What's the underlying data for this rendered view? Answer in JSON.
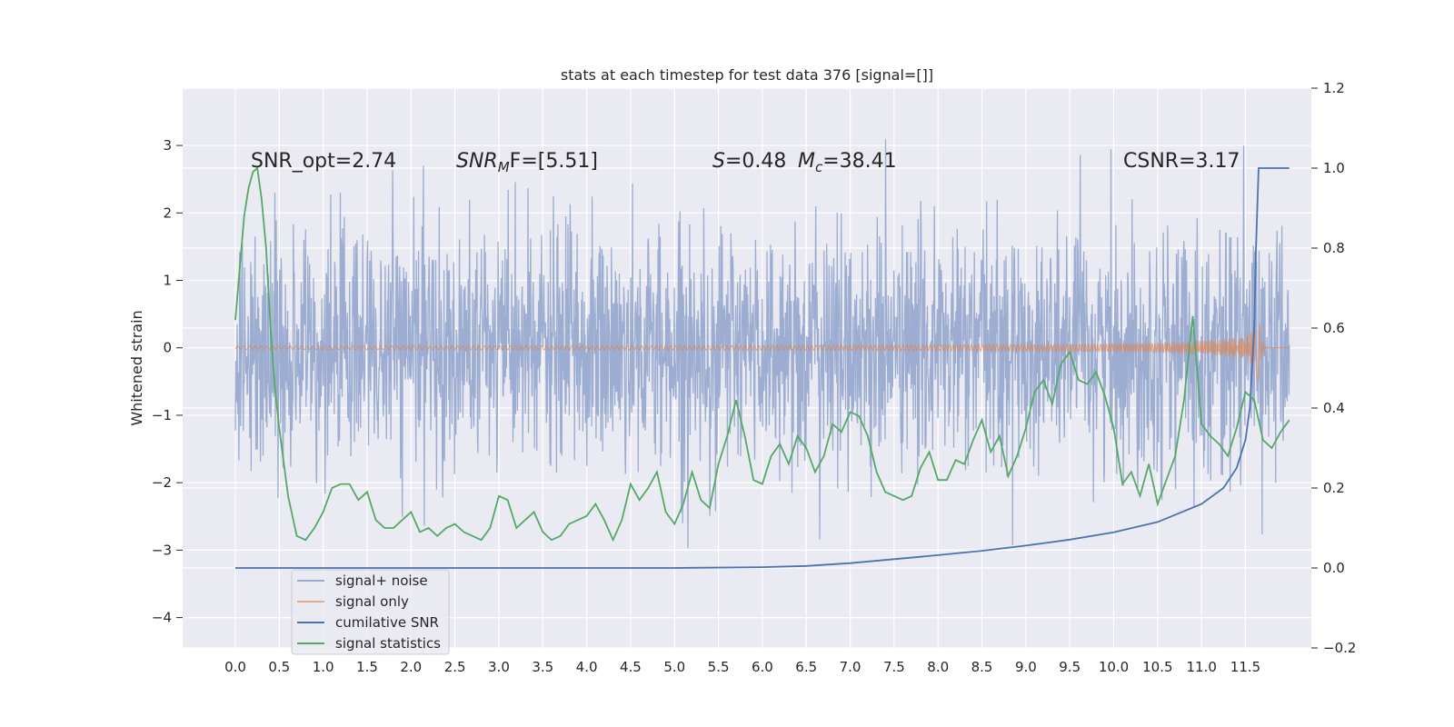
{
  "chart_data": {
    "type": "line",
    "title": "stats at each timestep for test data 376 [signal=[]]",
    "ylabel": "Whitened strain",
    "xlabel": "",
    "xlim": [
      -0.6,
      12.25
    ],
    "ylim": [
      -4.45,
      3.85
    ],
    "y2lim": [
      -0.2,
      1.2
    ],
    "xticks": [
      "0.0",
      "0.5",
      "1.0",
      "1.5",
      "2.0",
      "2.5",
      "3.0",
      "3.5",
      "4.0",
      "4.5",
      "5.0",
      "5.5",
      "6.0",
      "6.5",
      "7.0",
      "7.5",
      "8.0",
      "8.5",
      "9.0",
      "9.5",
      "10.0",
      "10.5",
      "11.0",
      "11.5"
    ],
    "yticks": [
      "3",
      "2",
      "1",
      "0",
      "−1",
      "−2",
      "−3",
      "−4"
    ],
    "y2ticks": [
      "1.2",
      "1.0",
      "0.8",
      "0.6",
      "0.4",
      "0.2",
      "0.0",
      "−0.2"
    ],
    "grid": true,
    "legend": {
      "position": "lower-left",
      "entries": [
        {
          "label": "signal+ noise",
          "color": "#98aacf"
        },
        {
          "label": "signal only",
          "color": "#dd8452"
        },
        {
          "label": "cumilative SNR",
          "color": "#4c72b0"
        },
        {
          "label": "signal statistics",
          "color": "#55a868"
        }
      ]
    },
    "annotations": {
      "snr_opt": "SNR_opt=2.74",
      "snr_mf_main": "SNR",
      "snr_mf_sub": "M",
      "snr_mf_rest": "F=[5.51]",
      "s_main": "S",
      "s_rest": "=0.48",
      "mc_main": "M",
      "mc_sub": "c",
      "mc_rest": "=38.41",
      "csnr": "CSNR=3.17"
    },
    "series": [
      {
        "name": "signal+ noise",
        "color": "#98aacf",
        "style": "dense gaussian noise trace, std ~0.9, t from 0 to 12.0",
        "t_start": 0.0,
        "t_end": 12.0,
        "std": 0.88
      },
      {
        "name": "signal only",
        "color": "#dd8452",
        "style": "chirp, amplitude grows near merger",
        "t_start": 0.0,
        "t_end": 12.0,
        "merger_time": 11.65,
        "peak_amplitude": 0.6
      },
      {
        "name": "cumilative SNR",
        "color": "#4c72b0",
        "axis": "right",
        "x": [
          0.0,
          5.0,
          6.0,
          6.5,
          7.0,
          7.5,
          8.0,
          8.5,
          9.0,
          9.5,
          10.0,
          10.5,
          11.0,
          11.25,
          11.4,
          11.5,
          11.55,
          11.6,
          11.62,
          11.65,
          11.8,
          12.0
        ],
        "y": [
          0.0,
          0.0,
          0.002,
          0.005,
          0.012,
          0.022,
          0.032,
          0.043,
          0.056,
          0.071,
          0.089,
          0.115,
          0.16,
          0.2,
          0.25,
          0.32,
          0.4,
          0.6,
          0.8,
          1.0,
          1.0,
          1.0
        ]
      },
      {
        "name": "signal statistics",
        "color": "#55a868",
        "axis": "right",
        "x": [
          0.0,
          0.05,
          0.1,
          0.15,
          0.2,
          0.25,
          0.3,
          0.35,
          0.4,
          0.45,
          0.5,
          0.6,
          0.7,
          0.8,
          0.9,
          1.0,
          1.1,
          1.2,
          1.3,
          1.4,
          1.5,
          1.6,
          1.7,
          1.8,
          1.9,
          2.0,
          2.1,
          2.2,
          2.3,
          2.4,
          2.5,
          2.6,
          2.7,
          2.8,
          2.9,
          3.0,
          3.1,
          3.2,
          3.3,
          3.4,
          3.5,
          3.6,
          3.7,
          3.8,
          3.9,
          4.0,
          4.1,
          4.2,
          4.3,
          4.4,
          4.5,
          4.6,
          4.7,
          4.8,
          4.9,
          5.0,
          5.1,
          5.2,
          5.3,
          5.4,
          5.5,
          5.6,
          5.7,
          5.8,
          5.9,
          6.0,
          6.1,
          6.2,
          6.3,
          6.4,
          6.5,
          6.6,
          6.7,
          6.8,
          6.9,
          7.0,
          7.1,
          7.2,
          7.3,
          7.4,
          7.5,
          7.6,
          7.7,
          7.8,
          7.9,
          8.0,
          8.1,
          8.2,
          8.3,
          8.4,
          8.5,
          8.6,
          8.7,
          8.8,
          8.9,
          9.0,
          9.1,
          9.2,
          9.3,
          9.4,
          9.5,
          9.6,
          9.7,
          9.8,
          9.9,
          10.0,
          10.1,
          10.2,
          10.3,
          10.4,
          10.5,
          10.6,
          10.7,
          10.8,
          10.9,
          11.0,
          11.1,
          11.2,
          11.3,
          11.4,
          11.5,
          11.6,
          11.7,
          11.8,
          11.9,
          12.0
        ],
        "y": [
          0.62,
          0.75,
          0.88,
          0.95,
          0.99,
          1.0,
          0.92,
          0.8,
          0.6,
          0.45,
          0.35,
          0.18,
          0.08,
          0.07,
          0.1,
          0.14,
          0.2,
          0.21,
          0.21,
          0.17,
          0.19,
          0.12,
          0.1,
          0.1,
          0.12,
          0.14,
          0.09,
          0.1,
          0.08,
          0.1,
          0.11,
          0.09,
          0.08,
          0.07,
          0.1,
          0.18,
          0.17,
          0.1,
          0.12,
          0.14,
          0.09,
          0.07,
          0.08,
          0.11,
          0.12,
          0.13,
          0.16,
          0.12,
          0.07,
          0.12,
          0.21,
          0.17,
          0.2,
          0.24,
          0.14,
          0.11,
          0.16,
          0.24,
          0.17,
          0.15,
          0.26,
          0.33,
          0.42,
          0.33,
          0.22,
          0.21,
          0.28,
          0.31,
          0.26,
          0.33,
          0.3,
          0.24,
          0.28,
          0.36,
          0.34,
          0.39,
          0.38,
          0.33,
          0.24,
          0.19,
          0.18,
          0.17,
          0.18,
          0.25,
          0.29,
          0.22,
          0.22,
          0.27,
          0.26,
          0.32,
          0.37,
          0.29,
          0.33,
          0.23,
          0.28,
          0.35,
          0.44,
          0.47,
          0.41,
          0.51,
          0.54,
          0.47,
          0.46,
          0.49,
          0.43,
          0.35,
          0.21,
          0.24,
          0.18,
          0.26,
          0.16,
          0.22,
          0.28,
          0.42,
          0.63,
          0.36,
          0.33,
          0.31,
          0.28,
          0.35,
          0.44,
          0.42,
          0.32,
          0.3,
          0.34,
          0.37
        ]
      }
    ]
  }
}
